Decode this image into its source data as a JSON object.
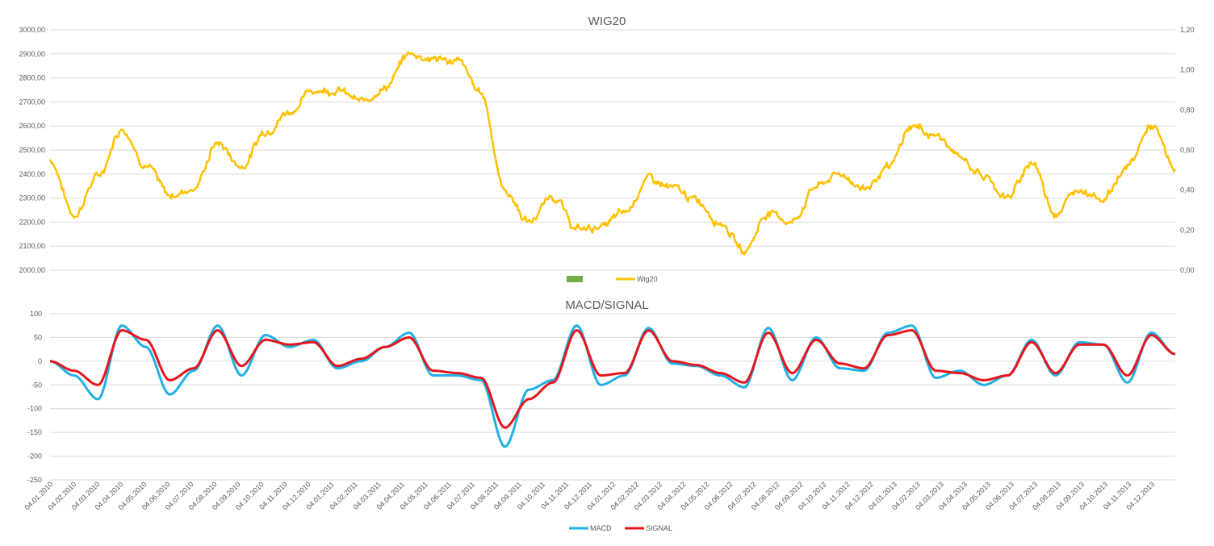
{
  "colors": {
    "wig20": "#FFC000",
    "legend_empty": "#70AD47",
    "macd": "#1FB0E6",
    "signal": "#E8141C",
    "grid": "#D9D9D9",
    "text": "#595959"
  },
  "x_dates": [
    "04.01.2010",
    "04.02.2010",
    "04.03.2010",
    "04.04.2010",
    "04.05.2010",
    "04.06.2010",
    "04.07.2010",
    "04.08.2010",
    "04.09.2010",
    "04.10.2010",
    "04.11.2010",
    "04.12.2010",
    "04.01.2011",
    "04.02.2011",
    "04.03.2011",
    "04.04.2011",
    "04.05.2011",
    "04.06.2011",
    "04.07.2011",
    "04.08.2011",
    "04.09.2011",
    "04.10.2011",
    "04.11.2011",
    "04.12.2011",
    "04.01.2012",
    "04.02.2012",
    "04.03.2012",
    "04.04.2012",
    "04.05.2012",
    "04.06.2012",
    "04.07.2012",
    "04.08.2012",
    "04.09.2012",
    "04.10.2012",
    "04.11.2012",
    "04.12.2012",
    "04.01.2013",
    "04.02.2013",
    "04.03.2013",
    "04.04.2013",
    "04.05.2013",
    "04.06.2013",
    "04.07.2013",
    "04.08.2013",
    "04.09.2013",
    "04.10.2013",
    "04.11.2013",
    "04.12.2013"
  ],
  "chart_data": [
    {
      "type": "line",
      "title": "WIG20",
      "ylim": [
        2000,
        3000
      ],
      "y_ticks": [
        "2000,00",
        "2100,00",
        "2200,00",
        "2300,00",
        "2400,00",
        "2500,00",
        "2600,00",
        "2700,00",
        "2800,00",
        "2900,00",
        "3000,00"
      ],
      "y2lim": [
        0,
        1.2
      ],
      "y2_ticks": [
        "0,00",
        "0,20",
        "0,40",
        "0,60",
        "0,80",
        "1,00",
        "1,20"
      ],
      "grid": true,
      "legend_position": "bottom",
      "legend": [
        "",
        "Wig20"
      ],
      "series": [
        {
          "name": "Wig20",
          "values": [
            2460,
            2230,
            2390,
            2590,
            2440,
            2310,
            2340,
            2530,
            2430,
            2580,
            2660,
            2750,
            2750,
            2700,
            2760,
            2900,
            2880,
            2870,
            2740,
            2330,
            2200,
            2310,
            2170,
            2180,
            2240,
            2380,
            2340,
            2290,
            2200,
            2080,
            2240,
            2200,
            2350,
            2400,
            2340,
            2420,
            2600,
            2560,
            2470,
            2390,
            2300,
            2450,
            2240,
            2340,
            2300,
            2430,
            2600,
            2420
          ]
        }
      ]
    },
    {
      "type": "line",
      "title": "MACD/SIGNAL",
      "ylim": [
        -250,
        100
      ],
      "y_ticks": [
        "-250",
        "-200",
        "-150",
        "-100",
        "-50",
        "0",
        "50",
        "100"
      ],
      "grid": true,
      "legend_position": "bottom",
      "series": [
        {
          "name": "MACD",
          "values": [
            0,
            -30,
            -80,
            75,
            30,
            -70,
            -20,
            75,
            -30,
            55,
            30,
            45,
            -15,
            0,
            30,
            60,
            -30,
            -30,
            -40,
            -180,
            -60,
            -40,
            75,
            -50,
            -30,
            70,
            -5,
            -10,
            -30,
            -55,
            70,
            -40,
            50,
            -15,
            -20,
            60,
            75,
            -35,
            -20,
            -50,
            -30,
            45,
            -30,
            40,
            35,
            -45,
            60,
            15
          ]
        },
        {
          "name": "SIGNAL",
          "values": [
            0,
            -20,
            -50,
            65,
            45,
            -40,
            -15,
            65,
            -10,
            45,
            35,
            40,
            -10,
            5,
            30,
            50,
            -20,
            -25,
            -35,
            -140,
            -80,
            -45,
            65,
            -30,
            -25,
            65,
            0,
            -8,
            -25,
            -45,
            60,
            -25,
            45,
            -5,
            -15,
            55,
            65,
            -20,
            -25,
            -40,
            -30,
            40,
            -25,
            35,
            35,
            -30,
            55,
            15
          ]
        }
      ]
    }
  ]
}
